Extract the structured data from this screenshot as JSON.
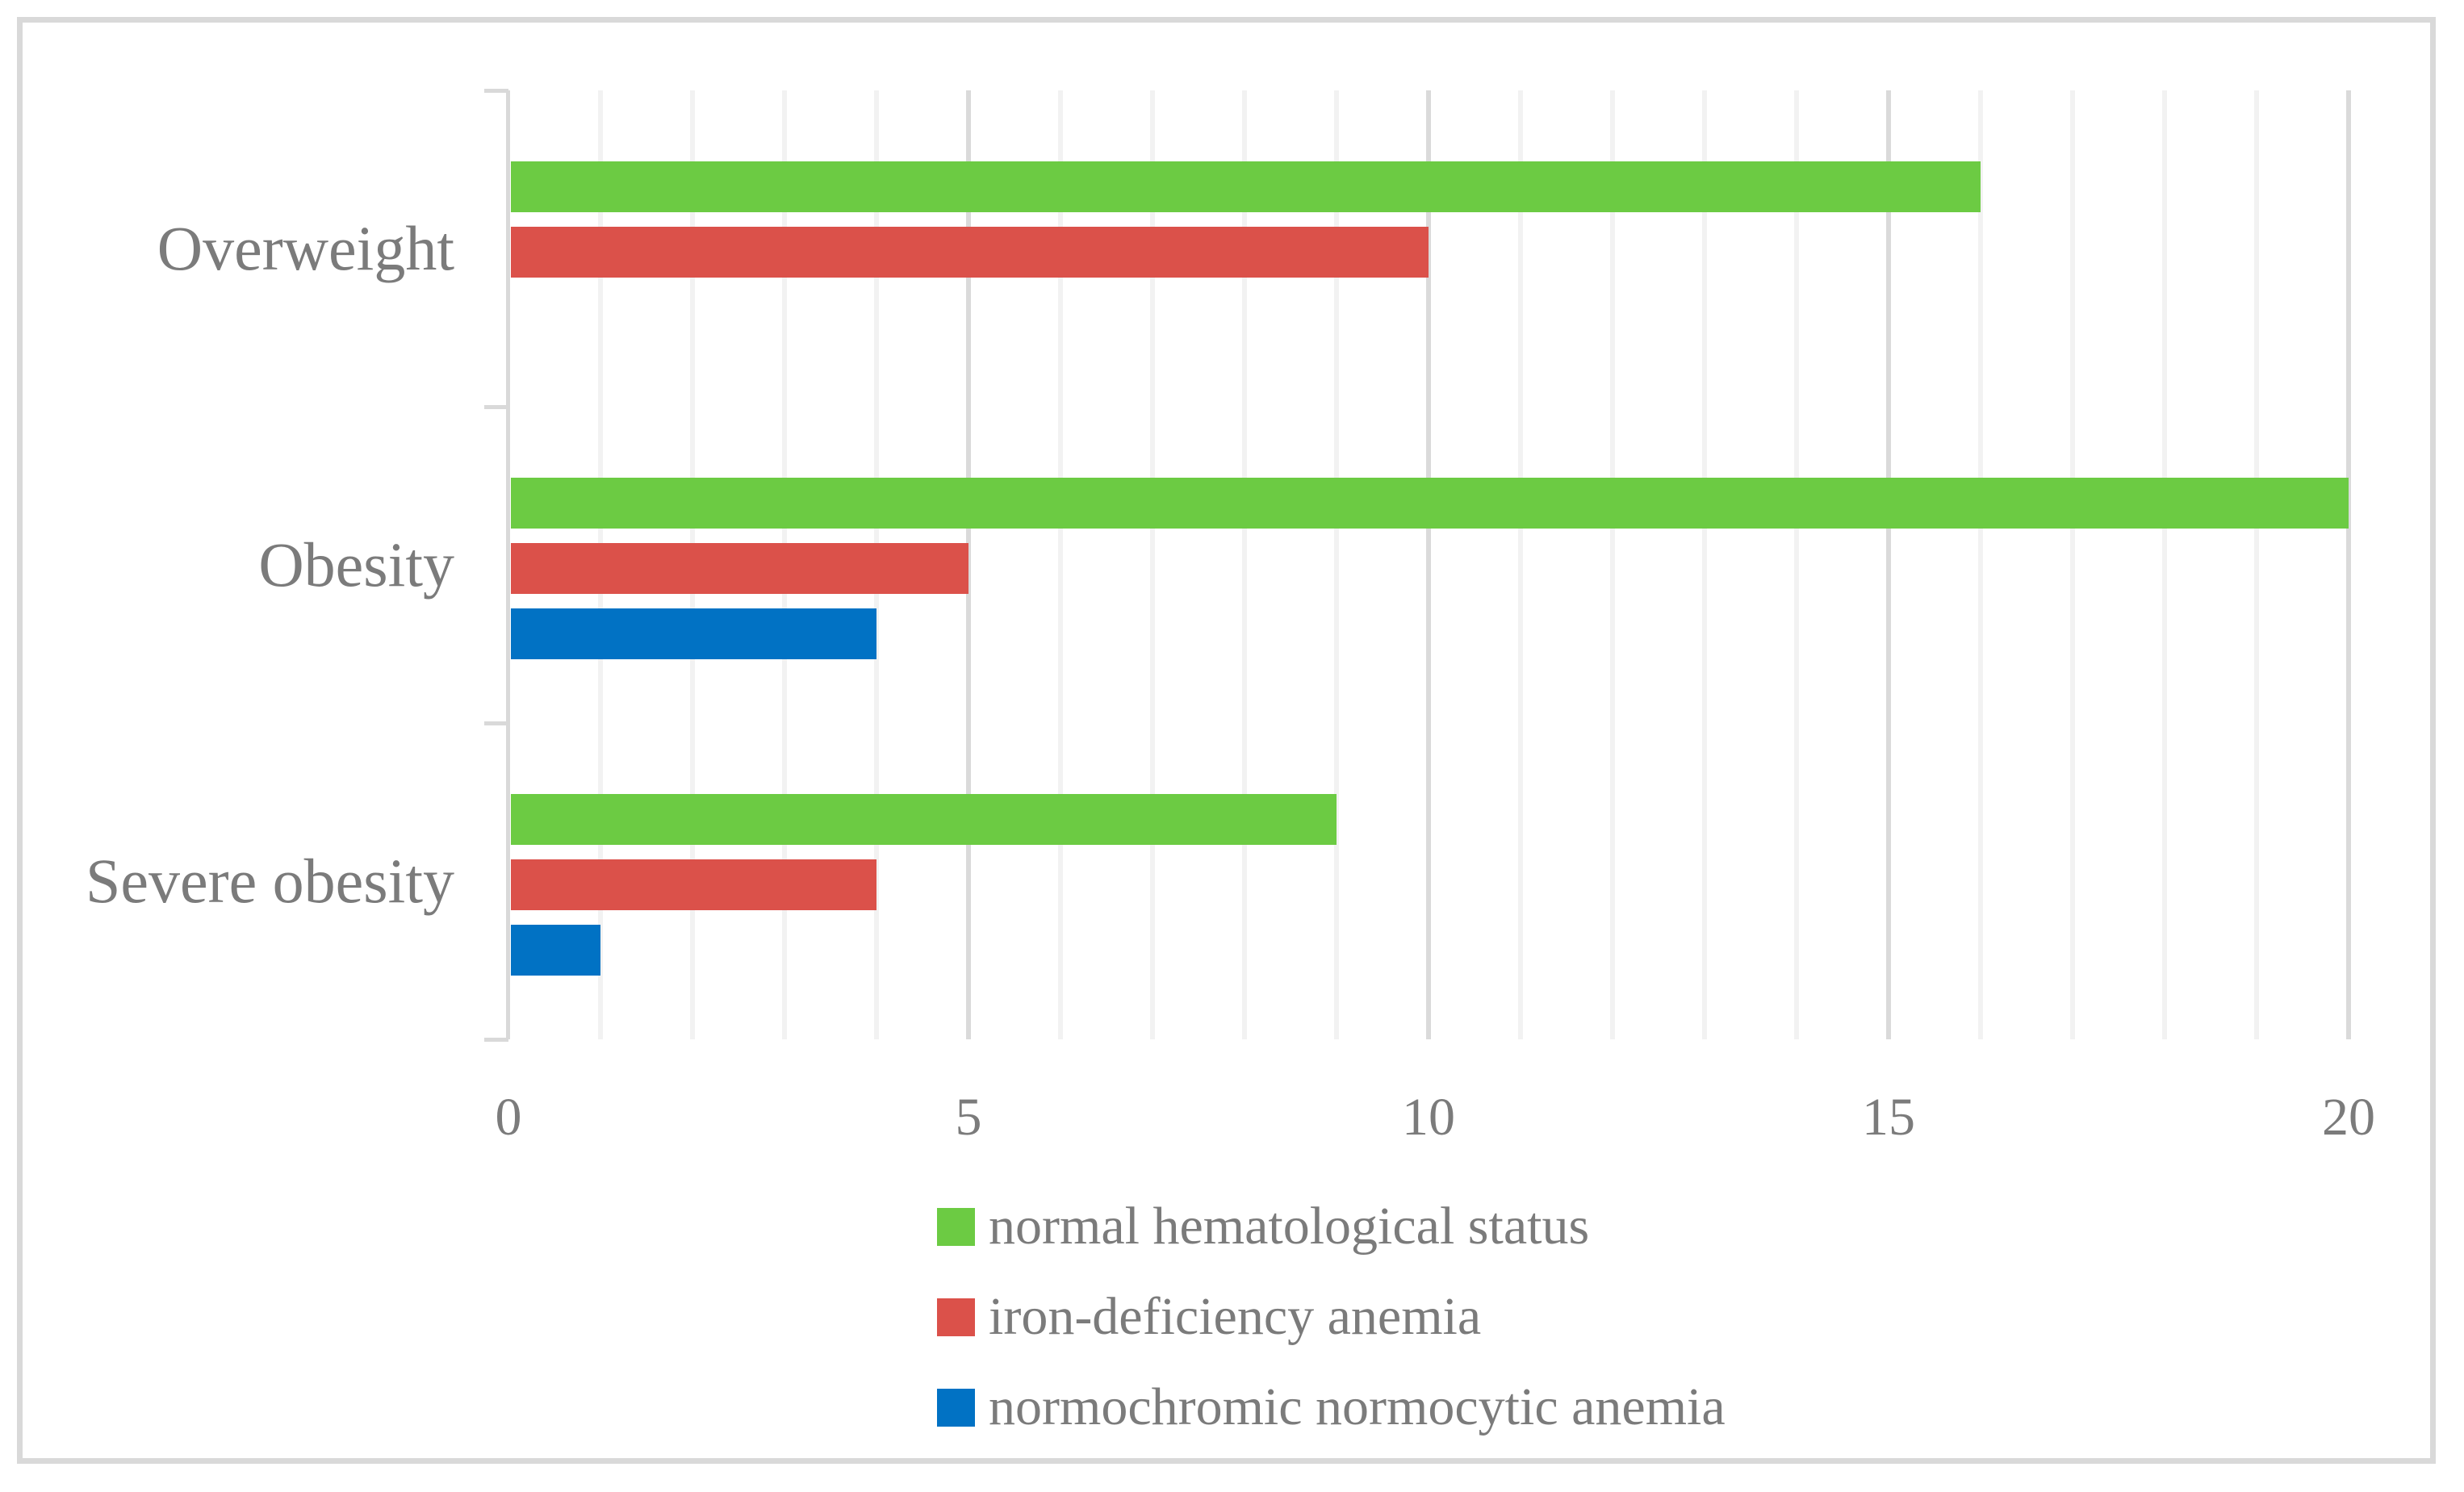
{
  "figure": {
    "background": "#ffffff",
    "frame_color": "#d9d9d9"
  },
  "chart_data": {
    "type": "bar",
    "orientation": "horizontal",
    "title": "",
    "xlabel": "",
    "ylabel": "",
    "categories": [
      "Overweight",
      "Obesity",
      "Severe obesity"
    ],
    "series": [
      {
        "name": "normal hematological status",
        "color": "#6CCB43",
        "values": [
          16,
          20,
          9
        ]
      },
      {
        "name": "iron-deficiency anemia",
        "color": "#DB514A",
        "values": [
          10,
          5,
          4
        ]
      },
      {
        "name": "normochromic normocytic anemia",
        "color": "#0172C4",
        "values": [
          0,
          4,
          1
        ]
      }
    ],
    "xlim": [
      0,
      20
    ],
    "x_ticks": [
      "0",
      "5",
      "10",
      "15",
      "20"
    ],
    "x_tick_values": [
      0,
      5,
      10,
      15,
      20
    ],
    "minor_grid_step": 1,
    "major_grid_step": 5,
    "grid": true,
    "grid_minor_color": "#f2f2f2",
    "grid_major_color": "#dadada",
    "axis_line_color": "#d9d9d9",
    "axis_text_color": "#7b7b7b",
    "legend_position": "bottom-center"
  }
}
